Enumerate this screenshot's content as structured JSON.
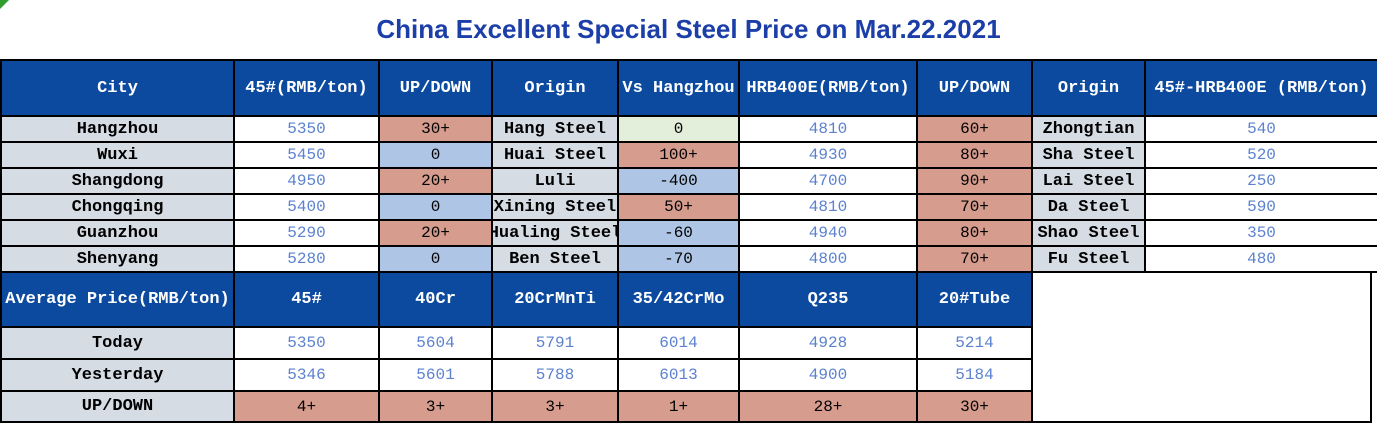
{
  "title": "China Excellent Special Steel Price on Mar.22.2021",
  "corner_marker": "green-triangle",
  "colors": {
    "header_bg": "#0C4AA0",
    "title_text": "#1C3EA8",
    "up_bg": "#D69C8D",
    "down_or_negative_bg": "#AFC5E5",
    "zero_bg": "#E4EFDB",
    "label_bg": "#D6DCE4",
    "value_text": "#5B81CF",
    "border": "#000000"
  },
  "price_table": {
    "headers": [
      "City",
      "45#(RMB/ton)",
      "UP/DOWN",
      "Origin",
      "Vs Hangzhou",
      "HRB400E(RMB/ton)",
      "UP/DOWN",
      "Origin",
      "45#-HRB400E (RMB/ton)"
    ],
    "rows": [
      {
        "city": "Hangzhou",
        "price_45": "5350",
        "up_down_45": "30+",
        "origin_45": "Hang Steel",
        "vs_hangzhou": "0",
        "price_hrb400e": "4810",
        "up_down_hrb": "60+",
        "origin_hrb": "Zhongtian",
        "diff_45_hrb": "540"
      },
      {
        "city": "Wuxi",
        "price_45": "5450",
        "up_down_45": "0",
        "origin_45": "Huai Steel",
        "vs_hangzhou": "100+",
        "price_hrb400e": "4930",
        "up_down_hrb": "80+",
        "origin_hrb": "Sha Steel",
        "diff_45_hrb": "520"
      },
      {
        "city": "Shangdong",
        "price_45": "4950",
        "up_down_45": "20+",
        "origin_45": "Luli",
        "vs_hangzhou": "-400",
        "price_hrb400e": "4700",
        "up_down_hrb": "90+",
        "origin_hrb": "Lai Steel",
        "diff_45_hrb": "250"
      },
      {
        "city": "Chongqing",
        "price_45": "5400",
        "up_down_45": "0",
        "origin_45": "Xining Steel",
        "vs_hangzhou": "50+",
        "price_hrb400e": "4810",
        "up_down_hrb": "70+",
        "origin_hrb": "Da Steel",
        "diff_45_hrb": "590"
      },
      {
        "city": "Guanzhou",
        "price_45": "5290",
        "up_down_45": "20+",
        "origin_45": "Hualing Steel",
        "vs_hangzhou": "-60",
        "price_hrb400e": "4940",
        "up_down_hrb": "80+",
        "origin_hrb": "Shao Steel",
        "diff_45_hrb": "350"
      },
      {
        "city": "Shenyang",
        "price_45": "5280",
        "up_down_45": "0",
        "origin_45": "Ben Steel",
        "vs_hangzhou": "-70",
        "price_hrb400e": "4800",
        "up_down_hrb": "70+",
        "origin_hrb": "Fu Steel",
        "diff_45_hrb": "480"
      }
    ]
  },
  "average_table": {
    "headers": [
      "Average Price(RMB/ton)",
      "45#",
      "40Cr",
      "20CrMnTi",
      "35/42CrMo",
      "Q235",
      "20#Tube"
    ],
    "rows": [
      {
        "label": "Today",
        "values": [
          "5350",
          "5604",
          "5791",
          "6014",
          "4928",
          "5214"
        ]
      },
      {
        "label": "Yesterday",
        "values": [
          "5346",
          "5601",
          "5788",
          "6013",
          "4900",
          "5184"
        ]
      },
      {
        "label": "UP/DOWN",
        "values": [
          "4+",
          "3+",
          "3+",
          "1+",
          "28+",
          "30+"
        ]
      }
    ]
  },
  "chart_data": [
    {
      "type": "table",
      "title": "China Excellent Special Steel Price on Mar.22.2021",
      "columns": [
        "City",
        "45#(RMB/ton)",
        "UP/DOWN",
        "Origin",
        "Vs Hangzhou",
        "HRB400E(RMB/ton)",
        "UP/DOWN",
        "Origin",
        "45#-HRB400E (RMB/ton)"
      ],
      "rows": [
        [
          "Hangzhou",
          5350,
          "30+",
          "Hang Steel",
          0,
          4810,
          "60+",
          "Zhongtian",
          540
        ],
        [
          "Wuxi",
          5450,
          "0",
          "Huai Steel",
          "100+",
          4930,
          "80+",
          "Sha Steel",
          520
        ],
        [
          "Shangdong",
          4950,
          "20+",
          "Luli",
          -400,
          4700,
          "90+",
          "Lai Steel",
          250
        ],
        [
          "Chongqing",
          5400,
          "0",
          "Xining Steel",
          "50+",
          4810,
          "70+",
          "Da Steel",
          590
        ],
        [
          "Guanzhou",
          5290,
          "20+",
          "Hualing Steel",
          -60,
          4940,
          "80+",
          "Shao Steel",
          350
        ],
        [
          "Shenyang",
          5280,
          "0",
          "Ben Steel",
          -70,
          4800,
          "70+",
          "Fu Steel",
          480
        ]
      ]
    },
    {
      "type": "table",
      "title": "Average Price(RMB/ton)",
      "columns": [
        "Average Price(RMB/ton)",
        "45#",
        "40Cr",
        "20CrMnTi",
        "35/42CrMo",
        "Q235",
        "20#Tube"
      ],
      "rows": [
        [
          "Today",
          5350,
          5604,
          5791,
          6014,
          4928,
          5214
        ],
        [
          "Yesterday",
          5346,
          5601,
          5788,
          6013,
          4900,
          5184
        ],
        [
          "UP/DOWN",
          "4+",
          "3+",
          "3+",
          "1+",
          "28+",
          "30+"
        ]
      ]
    }
  ]
}
